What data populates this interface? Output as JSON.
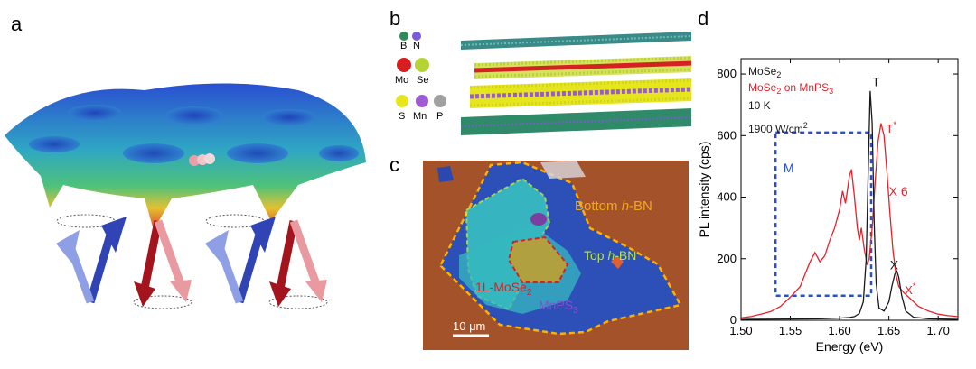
{
  "panel_labels": {
    "a": "a",
    "b": "b",
    "c": "c",
    "d": "d"
  },
  "panel_b": {
    "legend": [
      {
        "symbol": "B",
        "color": "#2e8b57"
      },
      {
        "symbol": "N",
        "color": "#7b5cd6"
      },
      {
        "symbol": "Mo",
        "color": "#d81e1e"
      },
      {
        "symbol": "Se",
        "color": "#b5d335"
      },
      {
        "symbol": "S",
        "color": "#e6e61e"
      },
      {
        "symbol": "Mn",
        "color": "#a05ad2"
      },
      {
        "symbol": "P",
        "color": "#a0a0a0"
      }
    ]
  },
  "panel_c": {
    "bottom_hbn": "Bottom ",
    "bottom_hbn_italic": "h",
    "bottom_hbn_suffix": "-BN",
    "top_hbn": "Top ",
    "top_hbn_italic": "h",
    "top_hbn_suffix": "-BN",
    "mose2": "1L-MoSe",
    "mose2_sub": "2",
    "mnps3": "MnPS",
    "mnps3_sub": "3",
    "scalebar": "10 μm"
  },
  "chart_data": {
    "type": "line",
    "xlabel": "Energy (eV)",
    "ylabel": "PL intensity (cps)",
    "xlim": [
      1.5,
      1.72
    ],
    "ylim": [
      0,
      850
    ],
    "xticks": [
      "1.50",
      "1.55",
      "1.60",
      "1.65",
      "1.70"
    ],
    "yticks": [
      "0",
      "200",
      "400",
      "600",
      "800"
    ],
    "legend": {
      "line1": "MoSe",
      "line1_sub": "2",
      "line2": "MoSe",
      "line2_sub": "2",
      "line2_suffix": " on MnPS",
      "line2_sub2": "3",
      "temp": "10 K",
      "power": "1900 W/cm",
      "power_sup": "2"
    },
    "annotations": {
      "T": "T",
      "Tstar": "T",
      "X": "X",
      "Xstar": "X",
      "star": "*",
      "M": "M",
      "x6": "X 6"
    },
    "colors": {
      "black": "#1a1a1a",
      "red": "#e8202a",
      "box": "#2b4fc4"
    },
    "series": [
      {
        "name": "MoSe2",
        "color": "#1a1a1a",
        "points": [
          [
            1.5,
            3
          ],
          [
            1.55,
            4
          ],
          [
            1.58,
            5
          ],
          [
            1.6,
            7
          ],
          [
            1.61,
            9
          ],
          [
            1.615,
            12
          ],
          [
            1.62,
            22
          ],
          [
            1.624,
            60
          ],
          [
            1.627,
            200
          ],
          [
            1.629,
            480
          ],
          [
            1.631,
            745
          ],
          [
            1.633,
            640
          ],
          [
            1.635,
            320
          ],
          [
            1.637,
            120
          ],
          [
            1.64,
            40
          ],
          [
            1.645,
            30
          ],
          [
            1.65,
            60
          ],
          [
            1.653,
            110
          ],
          [
            1.656,
            150
          ],
          [
            1.658,
            160
          ],
          [
            1.66,
            140
          ],
          [
            1.663,
            80
          ],
          [
            1.667,
            30
          ],
          [
            1.675,
            10
          ],
          [
            1.69,
            5
          ],
          [
            1.72,
            3
          ]
        ]
      },
      {
        "name": "MoSe2 on MnPS3",
        "color": "#e8202a",
        "points": [
          [
            1.5,
            8
          ],
          [
            1.51,
            12
          ],
          [
            1.52,
            20
          ],
          [
            1.53,
            28
          ],
          [
            1.54,
            45
          ],
          [
            1.55,
            75
          ],
          [
            1.56,
            110
          ],
          [
            1.565,
            150
          ],
          [
            1.57,
            190
          ],
          [
            1.575,
            220
          ],
          [
            1.58,
            190
          ],
          [
            1.585,
            210
          ],
          [
            1.59,
            260
          ],
          [
            1.595,
            300
          ],
          [
            1.6,
            360
          ],
          [
            1.603,
            420
          ],
          [
            1.606,
            380
          ],
          [
            1.61,
            470
          ],
          [
            1.612,
            490
          ],
          [
            1.615,
            400
          ],
          [
            1.618,
            300
          ],
          [
            1.62,
            260
          ],
          [
            1.622,
            300
          ],
          [
            1.625,
            230
          ],
          [
            1.628,
            180
          ],
          [
            1.63,
            200
          ],
          [
            1.633,
            300
          ],
          [
            1.636,
            450
          ],
          [
            1.639,
            580
          ],
          [
            1.642,
            640
          ],
          [
            1.645,
            600
          ],
          [
            1.648,
            480
          ],
          [
            1.651,
            350
          ],
          [
            1.654,
            230
          ],
          [
            1.657,
            150
          ],
          [
            1.66,
            110
          ],
          [
            1.665,
            90
          ],
          [
            1.67,
            75
          ],
          [
            1.68,
            45
          ],
          [
            1.69,
            30
          ],
          [
            1.7,
            20
          ],
          [
            1.71,
            15
          ],
          [
            1.72,
            12
          ]
        ]
      }
    ],
    "box": {
      "x0": 1.535,
      "x1": 1.632,
      "y0": 80,
      "y1": 610
    }
  }
}
